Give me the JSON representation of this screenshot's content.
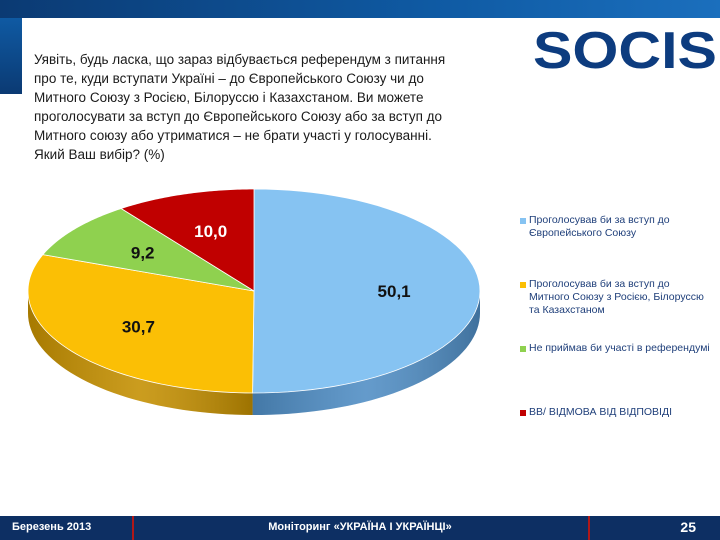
{
  "question": "Уявіть, будь ласка, що зараз відбувається референдум з питання\nпро те, куди вступати Україні – до Європейського Союзу чи до\nМитного Союзу з Росією, Білоруссю і Казахстаном. Ви можете\nпроголосувати за вступ до Європейського Союзу або за вступ до\nМитного союзу або утриматися – не брати участі у голосуванні.\nЯкий Ваш вибір? (%)",
  "logo": {
    "text": "SOCIS"
  },
  "chart_data": {
    "type": "pie",
    "title": "",
    "labels": [
      "Проголосував би за вступ до Європейського Союзу",
      "Проголосував би за вступ до Митного Союзу з Росією, Білоруссю та Казахстаном",
      "Не приймав би участі в референдумі",
      "ВВ/ ВІДМОВА ВІД ВІДПОВІДІ"
    ],
    "values": [
      50.1,
      30.7,
      9.2,
      10.0
    ],
    "data_labels": [
      "50,1",
      "30,7",
      "9,2",
      "10,0"
    ],
    "colors": [
      "#86c3f2",
      "#fbbf05",
      "#8fd14f",
      "#c00000"
    ],
    "side_colors": [
      "#4f8dc4",
      "#c48f00",
      "#5f9a2d",
      "#7d0000"
    ],
    "legend_position": "right"
  },
  "footer": {
    "date": "Березень 2013",
    "title": "Моніторинг «УКРАЇНА І УКРАЇНЦІ»",
    "page": "25"
  }
}
